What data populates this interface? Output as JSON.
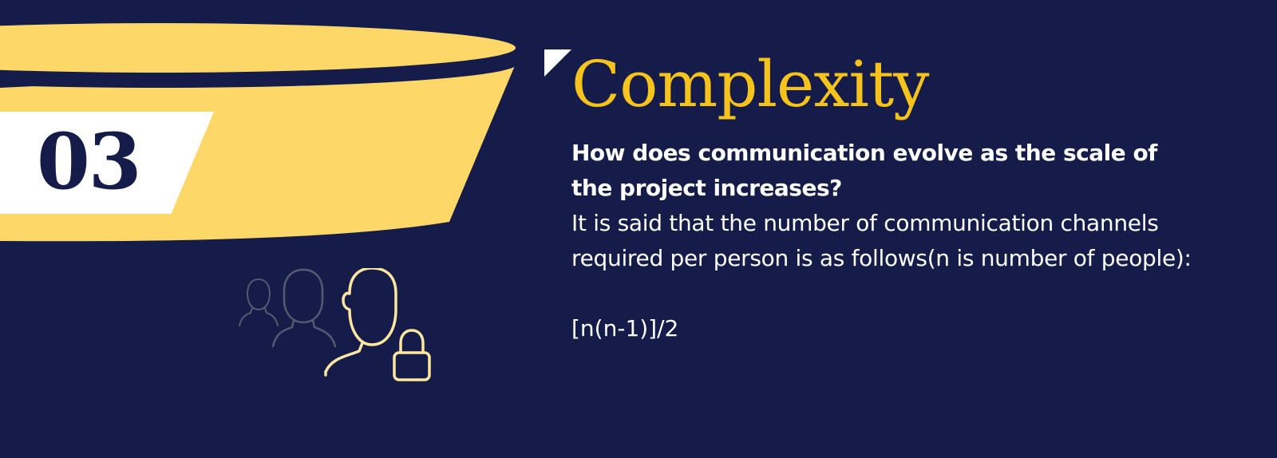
{
  "colors": {
    "background": "#161c4a",
    "accent": "#f6c21c",
    "band": "#fdd767",
    "text": "#ffffff",
    "icon_active": "#fde7a0",
    "icon_muted": "#555a6e"
  },
  "section": {
    "number": "03"
  },
  "icons": {
    "people": "user-group-lock-icon"
  },
  "title": "Complexity",
  "question": "How does communication evolve as the scale of the project increases?",
  "statement": "It is said that the number of communication channels required per person is as follows(n is number of people):",
  "formula": "[n(n-1)]/2"
}
